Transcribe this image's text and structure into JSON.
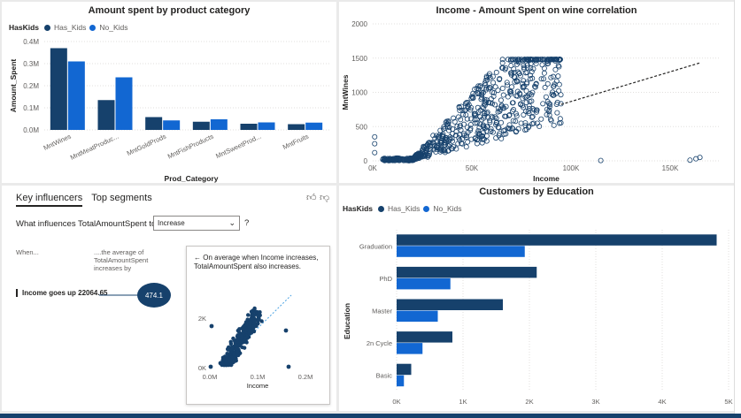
{
  "colors": {
    "has_kids": "#16416c",
    "no_kids": "#1267d2",
    "grid": "#e1dfdd",
    "axis_text": "#605e5c"
  },
  "bar_chart": {
    "title": "Amount spent by product category",
    "legend_title": "HasKids",
    "series_names": [
      "Has_Kids",
      "No_Kids"
    ],
    "ylabel": "Amount_Spent",
    "xlabel": "Prod_Category",
    "yticks": [
      "0.4M",
      "0.3M",
      "0.2M",
      "0.1M",
      "0.0M"
    ]
  },
  "scatter_chart": {
    "title": "Income - Amount Spent on wine correlation",
    "ylabel": "MntWines",
    "xlabel": "Income",
    "yticks": [
      "2000",
      "1500",
      "1000",
      "500",
      "0"
    ],
    "xticks": [
      "0K",
      "50K",
      "100K",
      "150K"
    ]
  },
  "key_influencers": {
    "tab_active": "Key influencers",
    "tab_other": "Top segments",
    "question": "What influences TotalAmountSpent to",
    "dropdown_value": "Increase",
    "question_mark": "?",
    "when_label": "When...",
    "avg_label": "....the average of TotalAmountSpent increases by",
    "influencer": "Income goes up 22064.65",
    "influence_value": "474.1",
    "detail_text": "← On average when Income increases, TotalAmountSpent also increases.",
    "mini_yticks": [
      "2K",
      "0K"
    ],
    "mini_xticks": [
      "0.0M",
      "0.1M",
      "0.2M"
    ],
    "mini_xlabel": "Income"
  },
  "education_chart": {
    "title": "Customers by Education",
    "legend_title": "HasKids",
    "series_names": [
      "Has_Kids",
      "No_Kids"
    ],
    "ylabel": "Education",
    "xticks": [
      "0K",
      "1K",
      "2K",
      "3K",
      "4K",
      "5K"
    ]
  },
  "chart_data": [
    {
      "type": "bar",
      "title": "Amount spent by product category",
      "xlabel": "Prod_Category",
      "ylabel": "Amount_Spent",
      "categories": [
        "MntWines",
        "MntMeatProduc...",
        "MntGoldProds",
        "MntFishProducts",
        "MntSweetProd...",
        "MntFruits"
      ],
      "series": [
        {
          "name": "Has_Kids",
          "values": [
            370000,
            135000,
            58000,
            37000,
            28000,
            26000
          ]
        },
        {
          "name": "No_Kids",
          "values": [
            310000,
            238000,
            43000,
            48000,
            34000,
            33000
          ]
        }
      ],
      "ylim": [
        0,
        400000
      ],
      "legend": "top-left"
    },
    {
      "type": "scatter",
      "title": "Income - Amount Spent on wine correlation",
      "xlabel": "Income",
      "ylabel": "MntWines",
      "xlim": [
        0,
        175000
      ],
      "ylim": [
        0,
        2000
      ],
      "trendline": {
        "x": [
          0,
          165000
        ],
        "y": [
          0,
          1430
        ]
      }
    },
    {
      "type": "bar",
      "title": "Customers by Education",
      "ylabel": "Education",
      "categories": [
        "Graduation",
        "PhD",
        "Master",
        "2n Cycle",
        "Basic"
      ],
      "series": [
        {
          "name": "Has_Kids",
          "values": [
            4820,
            2110,
            1600,
            840,
            220
          ]
        },
        {
          "name": "No_Kids",
          "values": [
            1930,
            810,
            620,
            390,
            110
          ]
        }
      ],
      "xlim": [
        0,
        5000
      ],
      "legend": "top-left"
    }
  ]
}
